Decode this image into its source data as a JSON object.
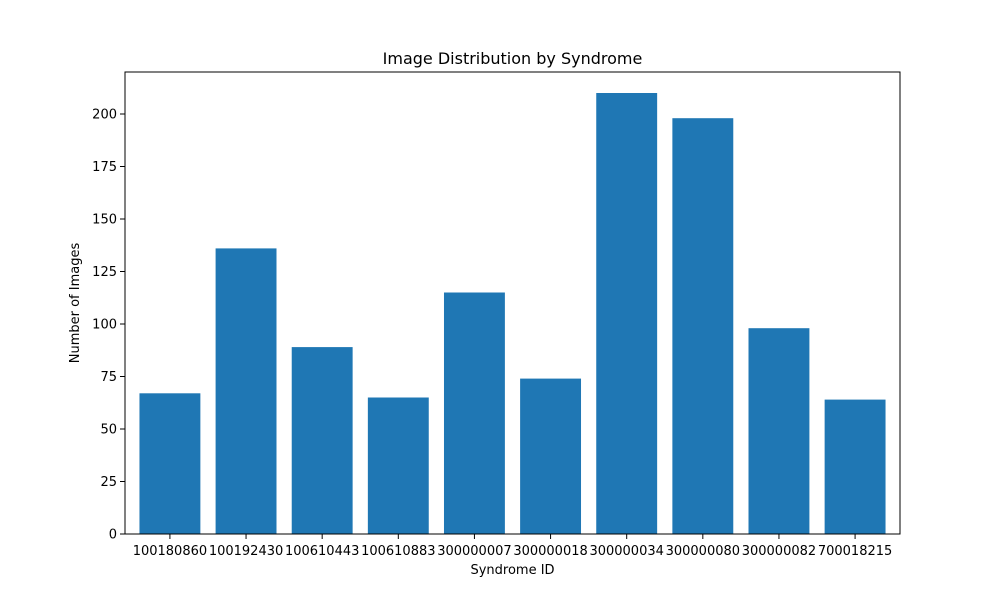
{
  "chart_data": {
    "type": "bar",
    "title": "Image Distribution by Syndrome",
    "xlabel": "Syndrome ID",
    "ylabel": "Number of Images",
    "categories": [
      "100180860",
      "100192430",
      "100610443",
      "100610883",
      "300000007",
      "300000018",
      "300000034",
      "300000080",
      "300000082",
      "700018215"
    ],
    "values": [
      67,
      136,
      89,
      65,
      115,
      74,
      210,
      198,
      98,
      64
    ],
    "ylim": [
      0,
      220
    ],
    "yticks": [
      0,
      25,
      50,
      75,
      100,
      125,
      150,
      175,
      200
    ],
    "bar_color": "#1f77b4",
    "grid": false,
    "legend": "none"
  }
}
